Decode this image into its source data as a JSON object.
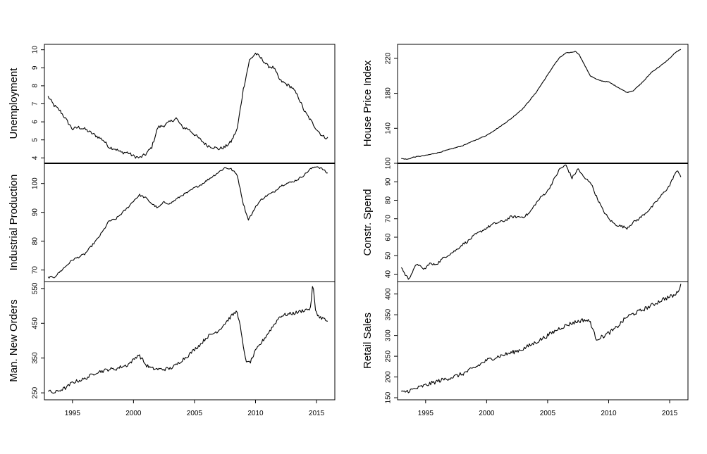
{
  "chart_data": [
    {
      "type": "line",
      "ylabel": "Unemployment",
      "ylim": [
        3.7,
        10.3
      ],
      "yticks": [
        4,
        5,
        6,
        7,
        8,
        9,
        10
      ],
      "x_start": 1993.0,
      "x_end": 2015.9,
      "anchors": [
        [
          1993.0,
          7.4
        ],
        [
          1993.5,
          6.9
        ],
        [
          1994.0,
          6.6
        ],
        [
          1994.5,
          6.1
        ],
        [
          1995.0,
          5.6
        ],
        [
          1995.5,
          5.7
        ],
        [
          1996.0,
          5.6
        ],
        [
          1996.5,
          5.4
        ],
        [
          1997.0,
          5.2
        ],
        [
          1997.5,
          5.0
        ],
        [
          1998.0,
          4.6
        ],
        [
          1998.5,
          4.5
        ],
        [
          1999.0,
          4.3
        ],
        [
          1999.5,
          4.3
        ],
        [
          2000.0,
          4.1
        ],
        [
          2000.5,
          4.0
        ],
        [
          2001.0,
          4.2
        ],
        [
          2001.5,
          4.6
        ],
        [
          2002.0,
          5.7
        ],
        [
          2002.5,
          5.8
        ],
        [
          2003.0,
          6.0
        ],
        [
          2003.5,
          6.2
        ],
        [
          2004.0,
          5.7
        ],
        [
          2004.5,
          5.6
        ],
        [
          2005.0,
          5.3
        ],
        [
          2005.5,
          5.0
        ],
        [
          2006.0,
          4.7
        ],
        [
          2006.5,
          4.6
        ],
        [
          2007.0,
          4.5
        ],
        [
          2007.5,
          4.6
        ],
        [
          2008.0,
          4.9
        ],
        [
          2008.5,
          5.6
        ],
        [
          2009.0,
          7.8
        ],
        [
          2009.5,
          9.4
        ],
        [
          2010.0,
          9.8
        ],
        [
          2010.5,
          9.5
        ],
        [
          2011.0,
          9.1
        ],
        [
          2011.5,
          9.0
        ],
        [
          2012.0,
          8.3
        ],
        [
          2012.5,
          8.1
        ],
        [
          2013.0,
          7.9
        ],
        [
          2013.5,
          7.4
        ],
        [
          2014.0,
          6.6
        ],
        [
          2014.5,
          6.1
        ],
        [
          2015.0,
          5.6
        ],
        [
          2015.5,
          5.2
        ],
        [
          2015.9,
          5.1
        ]
      ],
      "noise": 0.09
    },
    {
      "type": "line",
      "ylabel": "House Price Index",
      "ylim": [
        100,
        236
      ],
      "yticks": [
        140,
        180,
        220
      ],
      "x_start": 1993.0,
      "x_end": 2015.9,
      "anchors": [
        [
          1993.0,
          105.5
        ],
        [
          1993.5,
          104.5
        ],
        [
          1994.0,
          107
        ],
        [
          1994.5,
          108
        ],
        [
          1995.0,
          109
        ],
        [
          1996.0,
          112
        ],
        [
          1997.0,
          116
        ],
        [
          1998.0,
          120
        ],
        [
          1999.0,
          126
        ],
        [
          2000.0,
          132
        ],
        [
          2001.0,
          141
        ],
        [
          2002.0,
          151
        ],
        [
          2003.0,
          163
        ],
        [
          2004.0,
          180
        ],
        [
          2005.0,
          201
        ],
        [
          2005.5,
          212
        ],
        [
          2006.0,
          221
        ],
        [
          2006.5,
          226
        ],
        [
          2007.0,
          227
        ],
        [
          2007.3,
          228
        ],
        [
          2007.6,
          224
        ],
        [
          2008.0,
          213
        ],
        [
          2008.5,
          200
        ],
        [
          2009.0,
          196
        ],
        [
          2009.5,
          194
        ],
        [
          2010.0,
          193
        ],
        [
          2010.5,
          189
        ],
        [
          2011.0,
          185
        ],
        [
          2011.5,
          181
        ],
        [
          2012.0,
          183
        ],
        [
          2012.5,
          189
        ],
        [
          2013.0,
          196
        ],
        [
          2013.5,
          204
        ],
        [
          2014.0,
          209
        ],
        [
          2014.5,
          214
        ],
        [
          2015.0,
          220
        ],
        [
          2015.5,
          227
        ],
        [
          2015.9,
          230
        ]
      ],
      "noise": 0.4
    },
    {
      "type": "line",
      "ylabel": "Industrial Production",
      "ylim": [
        66,
        107
      ],
      "yticks": [
        70,
        80,
        90,
        100
      ],
      "x_start": 1993.0,
      "x_end": 2015.9,
      "anchors": [
        [
          1993.0,
          67.5
        ],
        [
          1993.5,
          67.5
        ],
        [
          1994.0,
          69.5
        ],
        [
          1994.5,
          71.5
        ],
        [
          1995.0,
          73.5
        ],
        [
          1995.5,
          74.5
        ],
        [
          1996.0,
          75.5
        ],
        [
          1996.5,
          78
        ],
        [
          1997.0,
          80.5
        ],
        [
          1997.5,
          83.5
        ],
        [
          1998.0,
          87
        ],
        [
          1998.5,
          87.5
        ],
        [
          1999.0,
          89.5
        ],
        [
          1999.5,
          91.5
        ],
        [
          2000.0,
          94
        ],
        [
          2000.5,
          96
        ],
        [
          2001.0,
          95
        ],
        [
          2001.5,
          93
        ],
        [
          2002.0,
          91.5
        ],
        [
          2002.5,
          93.5
        ],
        [
          2003.0,
          93
        ],
        [
          2003.5,
          94.5
        ],
        [
          2004.0,
          96
        ],
        [
          2004.5,
          97
        ],
        [
          2005.0,
          98.5
        ],
        [
          2005.5,
          99.5
        ],
        [
          2006.0,
          101
        ],
        [
          2006.5,
          102.5
        ],
        [
          2007.0,
          104
        ],
        [
          2007.5,
          105.5
        ],
        [
          2008.0,
          105
        ],
        [
          2008.5,
          103
        ],
        [
          2009.0,
          93
        ],
        [
          2009.4,
          87.5
        ],
        [
          2009.8,
          90
        ],
        [
          2010.0,
          92
        ],
        [
          2010.5,
          94.5
        ],
        [
          2011.0,
          96
        ],
        [
          2011.5,
          97
        ],
        [
          2012.0,
          99
        ],
        [
          2012.5,
          100
        ],
        [
          2013.0,
          100.5
        ],
        [
          2013.5,
          101.5
        ],
        [
          2014.0,
          103
        ],
        [
          2014.5,
          105
        ],
        [
          2015.0,
          106
        ],
        [
          2015.5,
          105
        ],
        [
          2015.9,
          103.5
        ]
      ],
      "noise": 0.35
    },
    {
      "type": "line",
      "ylabel": "Constr. Spend",
      "ylim": [
        36,
        100
      ],
      "yticks": [
        40,
        50,
        60,
        70,
        80,
        90,
        100
      ],
      "x_start": 1993.0,
      "x_end": 2015.9,
      "anchors": [
        [
          1993.0,
          44
        ],
        [
          1993.3,
          40
        ],
        [
          1993.6,
          37.5
        ],
        [
          1994.0,
          42
        ],
        [
          1994.3,
          46
        ],
        [
          1994.7,
          43
        ],
        [
          1995.0,
          43
        ],
        [
          1995.3,
          46
        ],
        [
          1995.6,
          45
        ],
        [
          1996.0,
          46
        ],
        [
          1996.5,
          49
        ],
        [
          1997.0,
          51
        ],
        [
          1997.5,
          53
        ],
        [
          1998.0,
          56
        ],
        [
          1998.5,
          58
        ],
        [
          1999.0,
          61
        ],
        [
          1999.5,
          63
        ],
        [
          2000.0,
          65
        ],
        [
          2000.5,
          67
        ],
        [
          2001.0,
          68
        ],
        [
          2001.5,
          69
        ],
        [
          2002.0,
          71
        ],
        [
          2002.5,
          71
        ],
        [
          2003.0,
          71
        ],
        [
          2003.5,
          73
        ],
        [
          2004.0,
          78
        ],
        [
          2004.5,
          82
        ],
        [
          2005.0,
          85
        ],
        [
          2005.5,
          91
        ],
        [
          2006.0,
          97
        ],
        [
          2006.5,
          99
        ],
        [
          2007.0,
          92
        ],
        [
          2007.5,
          97
        ],
        [
          2008.0,
          92
        ],
        [
          2008.5,
          90
        ],
        [
          2009.0,
          82
        ],
        [
          2009.5,
          75
        ],
        [
          2010.0,
          70
        ],
        [
          2010.5,
          67
        ],
        [
          2011.0,
          66
        ],
        [
          2011.5,
          65
        ],
        [
          2012.0,
          68
        ],
        [
          2012.5,
          70
        ],
        [
          2013.0,
          73
        ],
        [
          2013.5,
          76
        ],
        [
          2014.0,
          80
        ],
        [
          2014.5,
          84
        ],
        [
          2015.0,
          88
        ],
        [
          2015.4,
          94
        ],
        [
          2015.7,
          96
        ],
        [
          2015.9,
          93
        ]
      ],
      "noise": 0.7
    },
    {
      "type": "line",
      "ylabel": "Man. New Orders",
      "ylim": [
        230,
        570
      ],
      "yticks": [
        250,
        350,
        450,
        550
      ],
      "x_start": 1993.0,
      "x_end": 2015.9,
      "anchors": [
        [
          1993.0,
          255
        ],
        [
          1993.5,
          250
        ],
        [
          1994.0,
          258
        ],
        [
          1994.5,
          265
        ],
        [
          1995.0,
          280
        ],
        [
          1995.5,
          285
        ],
        [
          1996.0,
          290
        ],
        [
          1996.5,
          300
        ],
        [
          1997.0,
          310
        ],
        [
          1997.5,
          313
        ],
        [
          1998.0,
          318
        ],
        [
          1998.5,
          318
        ],
        [
          1999.0,
          325
        ],
        [
          1999.5,
          330
        ],
        [
          2000.0,
          345
        ],
        [
          2000.4,
          360
        ],
        [
          2000.8,
          343
        ],
        [
          2001.0,
          330
        ],
        [
          2001.5,
          320
        ],
        [
          2002.0,
          318
        ],
        [
          2002.5,
          318
        ],
        [
          2003.0,
          320
        ],
        [
          2003.5,
          330
        ],
        [
          2004.0,
          345
        ],
        [
          2004.5,
          358
        ],
        [
          2005.0,
          375
        ],
        [
          2005.5,
          390
        ],
        [
          2006.0,
          410
        ],
        [
          2006.5,
          420
        ],
        [
          2007.0,
          430
        ],
        [
          2007.5,
          450
        ],
        [
          2008.0,
          470
        ],
        [
          2008.5,
          485
        ],
        [
          2008.8,
          430
        ],
        [
          2009.0,
          380
        ],
        [
          2009.3,
          335
        ],
        [
          2009.6,
          340
        ],
        [
          2010.0,
          370
        ],
        [
          2010.5,
          395
        ],
        [
          2011.0,
          420
        ],
        [
          2011.5,
          445
        ],
        [
          2012.0,
          470
        ],
        [
          2012.5,
          475
        ],
        [
          2013.0,
          478
        ],
        [
          2013.5,
          482
        ],
        [
          2014.0,
          488
        ],
        [
          2014.5,
          492
        ],
        [
          2014.7,
          565
        ],
        [
          2014.9,
          490
        ],
        [
          2015.2,
          468
        ],
        [
          2015.5,
          465
        ],
        [
          2015.9,
          455
        ]
      ],
      "noise": 5
    },
    {
      "type": "line",
      "ylabel": "Retail Sales",
      "ylim": [
        145,
        430
      ],
      "yticks": [
        150,
        200,
        250,
        300,
        350,
        400
      ],
      "x_start": 1993.0,
      "x_end": 2015.9,
      "anchors": [
        [
          1993.0,
          162
        ],
        [
          1994.0,
          170
        ],
        [
          1995.0,
          180
        ],
        [
          1996.0,
          190
        ],
        [
          1997.0,
          198
        ],
        [
          1998.0,
          207
        ],
        [
          1999.0,
          222
        ],
        [
          2000.0,
          240
        ],
        [
          2001.0,
          250
        ],
        [
          2002.0,
          258
        ],
        [
          2003.0,
          268
        ],
        [
          2004.0,
          283
        ],
        [
          2005.0,
          300
        ],
        [
          2006.0,
          318
        ],
        [
          2007.0,
          330
        ],
        [
          2008.0,
          338
        ],
        [
          2008.5,
          333
        ],
        [
          2008.8,
          305
        ],
        [
          2009.0,
          292
        ],
        [
          2009.5,
          297
        ],
        [
          2010.0,
          306
        ],
        [
          2010.5,
          315
        ],
        [
          2011.0,
          330
        ],
        [
          2011.5,
          345
        ],
        [
          2012.0,
          352
        ],
        [
          2012.5,
          358
        ],
        [
          2013.0,
          365
        ],
        [
          2013.5,
          372
        ],
        [
          2014.0,
          380
        ],
        [
          2014.5,
          388
        ],
        [
          2015.0,
          393
        ],
        [
          2015.5,
          398
        ],
        [
          2015.9,
          420
        ]
      ],
      "noise": 5
    }
  ],
  "x_axis": {
    "ticks": [
      1995,
      2000,
      2005,
      2010,
      2015
    ],
    "tick_labels": [
      "1995",
      "2000",
      "2005",
      "2010",
      "2015"
    ],
    "range": [
      1992.7,
      2016.5
    ]
  },
  "labels": {
    "p0": "Unemployment",
    "p1": "House Price Index",
    "p2": "Industrial Production",
    "p3": "Constr. Spend",
    "p4": "Man. New Orders",
    "p5": "Retail Sales"
  },
  "line_color": "#000000"
}
